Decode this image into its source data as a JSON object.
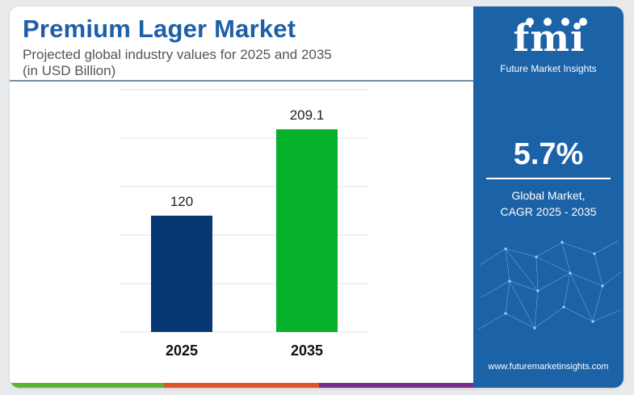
{
  "header": {
    "title": "Premium Lager Market",
    "subtitle_line1": "Projected global industry values for 2025 and 2035",
    "subtitle_line2": "(in USD Billion)"
  },
  "chart_data": {
    "type": "bar",
    "categories": [
      "2025",
      "2035"
    ],
    "values": [
      120,
      209.1
    ],
    "value_labels": [
      "120",
      "209.1"
    ],
    "bar_colors": [
      "#073874",
      "#05b02b"
    ],
    "ylim": [
      0,
      250
    ],
    "grid": true,
    "xlabel": "",
    "ylabel": ""
  },
  "sidebar": {
    "logo_mark": "fmi",
    "logo_text": "Future Market Insights",
    "cagr_value": "5.7%",
    "cagr_label_line1": "Global Market,",
    "cagr_label_line2": "CAGR 2025 - 2035",
    "website": "www.futuremarketinsights.com"
  },
  "colors": {
    "title": "#1e5fa8",
    "panel": "#1c62a6",
    "bottom_bar": [
      "#5cb531",
      "#e0542a",
      "#7a2d8a"
    ]
  }
}
